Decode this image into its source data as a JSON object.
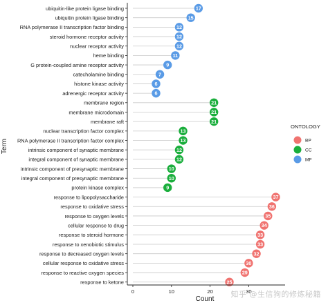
{
  "chart_data": {
    "type": "scatter",
    "subtype": "lollipop",
    "xlabel": "Count",
    "ylabel": "Term",
    "xlim": [
      0,
      38
    ],
    "x_ticks": [
      0,
      10,
      20,
      30
    ],
    "x_tick_labels": [
      "0",
      "10",
      "20",
      "30"
    ],
    "grid": false,
    "legend": {
      "title": "ONTOLOGY",
      "placement": "right",
      "entries": [
        {
          "name": "BP",
          "color": "#F07370"
        },
        {
          "name": "CC",
          "color": "#1AAE3C"
        },
        {
          "name": "MF",
          "color": "#5A9BE6"
        }
      ]
    },
    "terms": [
      {
        "term": "ubiquitin-like protein ligase binding",
        "count": 17,
        "ontology": "MF"
      },
      {
        "term": "ubiquitin protein ligase binding",
        "count": 15,
        "ontology": "MF"
      },
      {
        "term": "RNA polymerase II transcription factor binding",
        "count": 12,
        "ontology": "MF"
      },
      {
        "term": "steroid hormone receptor activity",
        "count": 12,
        "ontology": "MF"
      },
      {
        "term": "nuclear receptor activity",
        "count": 12,
        "ontology": "MF"
      },
      {
        "term": "heme binding",
        "count": 11,
        "ontology": "MF"
      },
      {
        "term": "G protein-coupled amine receptor activity",
        "count": 9,
        "ontology": "MF"
      },
      {
        "term": "catecholamine binding",
        "count": 7,
        "ontology": "MF"
      },
      {
        "term": "histone kinase activity",
        "count": 6,
        "ontology": "MF"
      },
      {
        "term": "adrenergic receptor activity",
        "count": 6,
        "ontology": "MF"
      },
      {
        "term": "membrane region",
        "count": 21,
        "ontology": "CC"
      },
      {
        "term": "membrane microdomain",
        "count": 21,
        "ontology": "CC"
      },
      {
        "term": "membrane raft",
        "count": 21,
        "ontology": "CC"
      },
      {
        "term": "nuclear transcription factor complex",
        "count": 13,
        "ontology": "CC"
      },
      {
        "term": "RNA polymerase II transcription factor complex",
        "count": 13,
        "ontology": "CC"
      },
      {
        "term": "intrinsic component of synaptic membrane",
        "count": 12,
        "ontology": "CC"
      },
      {
        "term": "integral component of synaptic membrane",
        "count": 12,
        "ontology": "CC"
      },
      {
        "term": "intrinsic component of presynaptic membrane",
        "count": 10,
        "ontology": "CC"
      },
      {
        "term": "integral component of presynaptic membrane",
        "count": 10,
        "ontology": "CC"
      },
      {
        "term": "protein kinase complex",
        "count": 9,
        "ontology": "CC"
      },
      {
        "term": "response to lipopolysaccharide",
        "count": 37,
        "ontology": "BP"
      },
      {
        "term": "response to oxidative stress",
        "count": 36,
        "ontology": "BP"
      },
      {
        "term": "response to oxygen levels",
        "count": 35,
        "ontology": "BP"
      },
      {
        "term": "cellular response to drug",
        "count": 34,
        "ontology": "BP"
      },
      {
        "term": "response to steroid hormone",
        "count": 33,
        "ontology": "BP"
      },
      {
        "term": "response to xenobiotic stimulus",
        "count": 33,
        "ontology": "BP"
      },
      {
        "term": "response to decreased oxygen levels",
        "count": 32,
        "ontology": "BP"
      },
      {
        "term": "cellular response to oxidative stress",
        "count": 30,
        "ontology": "BP"
      },
      {
        "term": "response to reactive oxygen species",
        "count": 29,
        "ontology": "BP"
      },
      {
        "term": "response to ketone",
        "count": 25,
        "ontology": "BP"
      }
    ]
  },
  "watermark": "知乎 @生信狗的修炼秘籍"
}
